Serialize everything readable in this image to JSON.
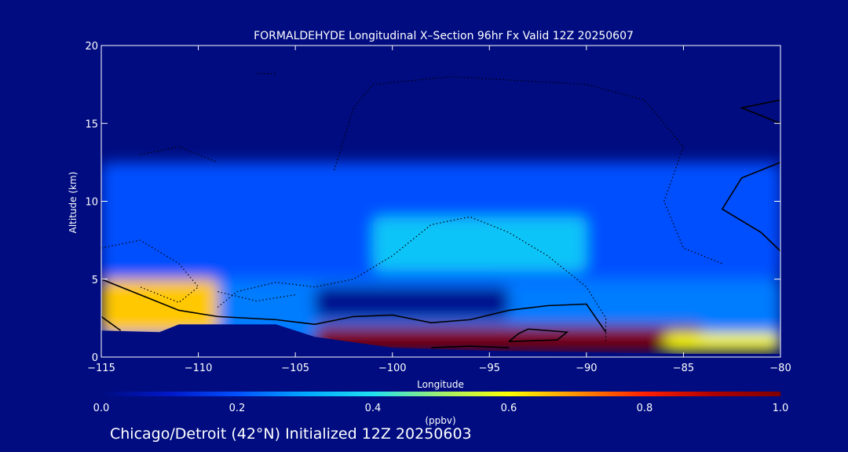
{
  "chart_data": {
    "type": "heatmap",
    "title": "FORMALDEHYDE Longitudinal X–Section 96hr  Fx Valid 12Z 20250607",
    "xlabel": "Longitude",
    "ylabel": "Altitude (km)",
    "xlim": [
      -115,
      -80
    ],
    "ylim": [
      0,
      20
    ],
    "x_ticks": [
      -115,
      -110,
      -105,
      -100,
      -95,
      -90,
      -85,
      -80
    ],
    "y_ticks": [
      0,
      5,
      10,
      15,
      20
    ],
    "grid": false,
    "colorbar": {
      "label": "(ppbv)",
      "range": [
        0.0,
        1.0
      ],
      "ticks": [
        "0.0",
        "0.2",
        "0.4",
        "0.6",
        "0.8",
        "1.0"
      ],
      "colors": [
        "#000c80",
        "#0018c8",
        "#0050ff",
        "#00a8ff",
        "#20e0f0",
        "#a0f070",
        "#ffff00",
        "#ff9000",
        "#ff2000",
        "#b00000",
        "#800000"
      ]
    },
    "fields": [
      {
        "name": "upper-layer",
        "x": [
          -115,
          -80
        ],
        "y": [
          5.0,
          12.5
        ],
        "value": 0.2
      },
      {
        "name": "background-low",
        "x": [
          -115,
          -80
        ],
        "y": [
          0.8,
          5.0
        ],
        "value": 0.25
      },
      {
        "name": "western-low-max",
        "x": [
          -115,
          -109
        ],
        "y": [
          1.5,
          5.0
        ],
        "value": 0.65
      },
      {
        "name": "mid-minimum",
        "x": [
          -104,
          -94
        ],
        "y": [
          2.5,
          4.5
        ],
        "value": 0.02
      },
      {
        "name": "upper-maximum",
        "x": [
          -101,
          -90
        ],
        "y": [
          5.5,
          9.0
        ],
        "value": 0.35
      },
      {
        "name": "surface-maximum",
        "x": [
          -104,
          -84
        ],
        "y": [
          0.5,
          2.0
        ],
        "value": 1.0
      },
      {
        "name": "eastern-surface",
        "x": [
          -86,
          -80
        ],
        "y": [
          0.4,
          1.5
        ],
        "value": 0.6
      }
    ],
    "terrain_km": [
      [
        -115,
        1.7
      ],
      [
        -112,
        1.6
      ],
      [
        -111,
        2.1
      ],
      [
        -106,
        2.1
      ],
      [
        -104,
        1.3
      ],
      [
        -100,
        0.6
      ],
      [
        -95,
        0.4
      ],
      [
        -90,
        0.3
      ],
      [
        -85,
        0.2
      ],
      [
        -80,
        0.2
      ]
    ],
    "solid_contours": [
      [
        [
          -115,
          5.0
        ],
        [
          -113,
          4.0
        ],
        [
          -111,
          3.0
        ],
        [
          -109,
          2.6
        ],
        [
          -106,
          2.4
        ],
        [
          -104,
          2.1
        ],
        [
          -102,
          2.6
        ],
        [
          -100,
          2.7
        ],
        [
          -98,
          2.2
        ],
        [
          -96,
          2.4
        ],
        [
          -94,
          3.0
        ],
        [
          -92,
          3.3
        ],
        [
          -90,
          3.4
        ],
        [
          -89,
          1.6
        ]
      ],
      [
        [
          -94,
          1.0
        ],
        [
          -93.5,
          1.5
        ],
        [
          -93,
          1.8
        ],
        [
          -91,
          1.6
        ],
        [
          -91.5,
          1.1
        ],
        [
          -94,
          1.0
        ]
      ],
      [
        [
          -98,
          0.6
        ],
        [
          -96,
          0.7
        ],
        [
          -94,
          0.6
        ]
      ],
      [
        [
          -115,
          2.6
        ],
        [
          -114,
          1.7
        ]
      ],
      [
        [
          -80,
          12.5
        ],
        [
          -82,
          11.5
        ],
        [
          -83,
          9.5
        ],
        [
          -81,
          8.0
        ],
        [
          -80,
          6.8
        ]
      ],
      [
        [
          -80,
          16.5
        ],
        [
          -82,
          16.0
        ],
        [
          -80,
          15.0
        ]
      ]
    ],
    "dotted_contours": [
      [
        [
          -115,
          7.0
        ],
        [
          -113,
          7.5
        ],
        [
          -111,
          6.0
        ],
        [
          -110,
          4.5
        ],
        [
          -111,
          3.5
        ],
        [
          -113,
          4.5
        ]
      ],
      [
        [
          -109,
          3.2
        ],
        [
          -108,
          4.2
        ],
        [
          -106,
          4.8
        ],
        [
          -104,
          4.5
        ],
        [
          -102,
          5.0
        ],
        [
          -100,
          6.5
        ],
        [
          -98,
          8.5
        ],
        [
          -96,
          9.0
        ],
        [
          -94,
          8.0
        ],
        [
          -92,
          6.5
        ],
        [
          -90,
          4.5
        ],
        [
          -89,
          2.5
        ],
        [
          -89,
          1.0
        ]
      ],
      [
        [
          -103,
          12.0
        ],
        [
          -102,
          16.0
        ],
        [
          -101,
          17.5
        ],
        [
          -97,
          18.0
        ],
        [
          -90,
          17.5
        ],
        [
          -87,
          16.5
        ],
        [
          -85,
          13.5
        ],
        [
          -86,
          10.0
        ],
        [
          -85,
          7.0
        ],
        [
          -83,
          6.0
        ]
      ],
      [
        [
          -109,
          4.2
        ],
        [
          -107,
          3.6
        ],
        [
          -105,
          4.0
        ]
      ],
      [
        [
          -113,
          13.0
        ],
        [
          -111,
          13.5
        ],
        [
          -109,
          12.5
        ]
      ],
      [
        [
          -107,
          18.2
        ],
        [
          -106,
          18.2
        ]
      ]
    ]
  },
  "footer": "Chicago/Detroit (42°N) Initialized 12Z 20250603"
}
